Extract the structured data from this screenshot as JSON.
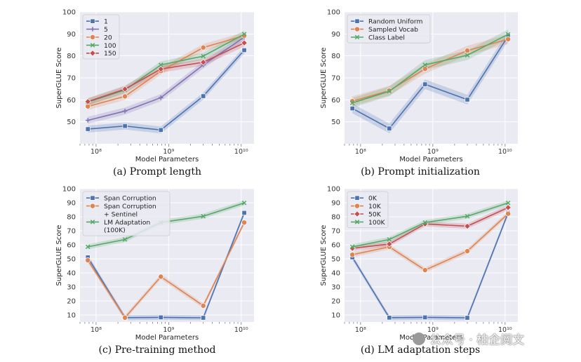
{
  "chart_data": [
    {
      "type": "line",
      "panel": "a",
      "caption": "(a) Prompt length",
      "xlabel": "Model Parameters",
      "ylabel": "SuperGLUE Score",
      "xscale": "log",
      "xlim": [
        60000000,
        15000000000
      ],
      "ylim": [
        40,
        100
      ],
      "yticks": [
        50,
        60,
        70,
        80,
        90,
        100
      ],
      "xticks": [
        {
          "value": 100000000,
          "label": "10⁸"
        },
        {
          "value": 1000000000,
          "label": "10⁹"
        },
        {
          "value": 10000000000,
          "label": "10¹⁰"
        }
      ],
      "x": [
        77000000,
        250000000,
        780000000,
        3000000000,
        11000000000
      ],
      "legend_position": "top-left",
      "series": [
        {
          "name": "1",
          "color": "#4c72b0",
          "marker": "square",
          "values": [
            46.7,
            48.1,
            46.3,
            61.7,
            82.6
          ]
        },
        {
          "name": "5",
          "color": "#8172b2",
          "marker": "plus",
          "values": [
            50.7,
            54.9,
            61.0,
            75.9,
            88.5
          ]
        },
        {
          "name": "20",
          "color": "#dd8452",
          "marker": "circle",
          "values": [
            57.0,
            61.6,
            73.1,
            83.8,
            89.2
          ]
        },
        {
          "name": "100",
          "color": "#55a868",
          "marker": "x",
          "values": [
            59.0,
            64.5,
            75.9,
            79.9,
            89.9
          ]
        },
        {
          "name": "150",
          "color": "#c44e52",
          "marker": "diamond",
          "values": [
            59.2,
            64.9,
            74.0,
            77.1,
            85.9
          ]
        }
      ]
    },
    {
      "type": "line",
      "panel": "b",
      "caption": "(b) Prompt initialization",
      "xlabel": "Model Parameters",
      "ylabel": "SuperGLUE Score",
      "xscale": "log",
      "xlim": [
        60000000,
        15000000000
      ],
      "ylim": [
        40,
        100
      ],
      "yticks": [
        50,
        60,
        70,
        80,
        90,
        100
      ],
      "xticks": [
        {
          "value": 100000000,
          "label": "10⁸"
        },
        {
          "value": 1000000000,
          "label": "10⁹"
        },
        {
          "value": 10000000000,
          "label": "10¹⁰"
        }
      ],
      "x": [
        77000000,
        250000000,
        780000000,
        3000000000,
        11000000000
      ],
      "legend_position": "top-left",
      "series": [
        {
          "name": "Random Uniform",
          "color": "#4c72b0",
          "marker": "square",
          "values": [
            56.1,
            47.0,
            67.1,
            60.1,
            89.0
          ]
        },
        {
          "name": "Sampled Vocab",
          "color": "#dd8452",
          "marker": "circle",
          "values": [
            59.4,
            64.2,
            74.1,
            82.4,
            87.6
          ]
        },
        {
          "name": "Class Label",
          "color": "#55a868",
          "marker": "x",
          "values": [
            58.6,
            63.9,
            75.9,
            80.3,
            89.8
          ]
        }
      ]
    },
    {
      "type": "line",
      "panel": "c",
      "caption": "(c) Pre-training method",
      "xlabel": "Model Parameters",
      "ylabel": "SuperGLUE Score",
      "xscale": "log",
      "xlim": [
        60000000,
        15000000000
      ],
      "ylim": [
        5,
        100
      ],
      "yticks": [
        10,
        20,
        30,
        40,
        50,
        60,
        70,
        80,
        90,
        100
      ],
      "xticks": [
        {
          "value": 100000000,
          "label": "10⁸"
        },
        {
          "value": 1000000000,
          "label": "10⁹"
        },
        {
          "value": 10000000000,
          "label": "10¹⁰"
        }
      ],
      "x": [
        77000000,
        250000000,
        780000000,
        3000000000,
        11000000000
      ],
      "legend_position": "top-left",
      "series": [
        {
          "name": "Span Corruption",
          "color": "#4c72b0",
          "marker": "square",
          "values": [
            51.1,
            8.1,
            8.3,
            8.0,
            82.8
          ]
        },
        {
          "name": "Span Corruption\n+ Sentinel",
          "color": "#dd8452",
          "marker": "circle",
          "values": [
            49.0,
            8.1,
            37.3,
            16.6,
            75.9
          ]
        },
        {
          "name": "LM Adaptation\n(100K)",
          "color": "#55a868",
          "marker": "x",
          "values": [
            58.6,
            63.8,
            75.9,
            80.4,
            89.9
          ]
        }
      ]
    },
    {
      "type": "line",
      "panel": "d",
      "caption": "(d) LM adaptation steps",
      "xlabel": "Model Parameters",
      "ylabel": "SuperGLUE Score",
      "xscale": "log",
      "xlim": [
        60000000,
        15000000000
      ],
      "ylim": [
        5,
        100
      ],
      "yticks": [
        10,
        20,
        30,
        40,
        50,
        60,
        70,
        80,
        90,
        100
      ],
      "xticks": [
        {
          "value": 100000000,
          "label": "10⁸"
        },
        {
          "value": 1000000000,
          "label": "10⁹"
        },
        {
          "value": 10000000000,
          "label": "10¹⁰"
        }
      ],
      "x": [
        77000000,
        250000000,
        780000000,
        3000000000,
        11000000000
      ],
      "legend_position": "top-left",
      "series": [
        {
          "name": "0K",
          "color": "#4c72b0",
          "marker": "square",
          "values": [
            51.1,
            8.1,
            8.3,
            8.0,
            82.8
          ]
        },
        {
          "name": "10K",
          "color": "#dd8452",
          "marker": "circle",
          "values": [
            53.0,
            58.6,
            42.0,
            55.5,
            82.2
          ]
        },
        {
          "name": "50K",
          "color": "#c44e52",
          "marker": "diamond",
          "values": [
            57.5,
            60.6,
            74.9,
            73.3,
            86.6
          ]
        },
        {
          "name": "100K",
          "color": "#55a868",
          "marker": "x",
          "values": [
            58.6,
            63.8,
            75.9,
            80.4,
            89.9
          ]
        }
      ]
    }
  ],
  "watermark": "公众号 · 柏企阅文"
}
